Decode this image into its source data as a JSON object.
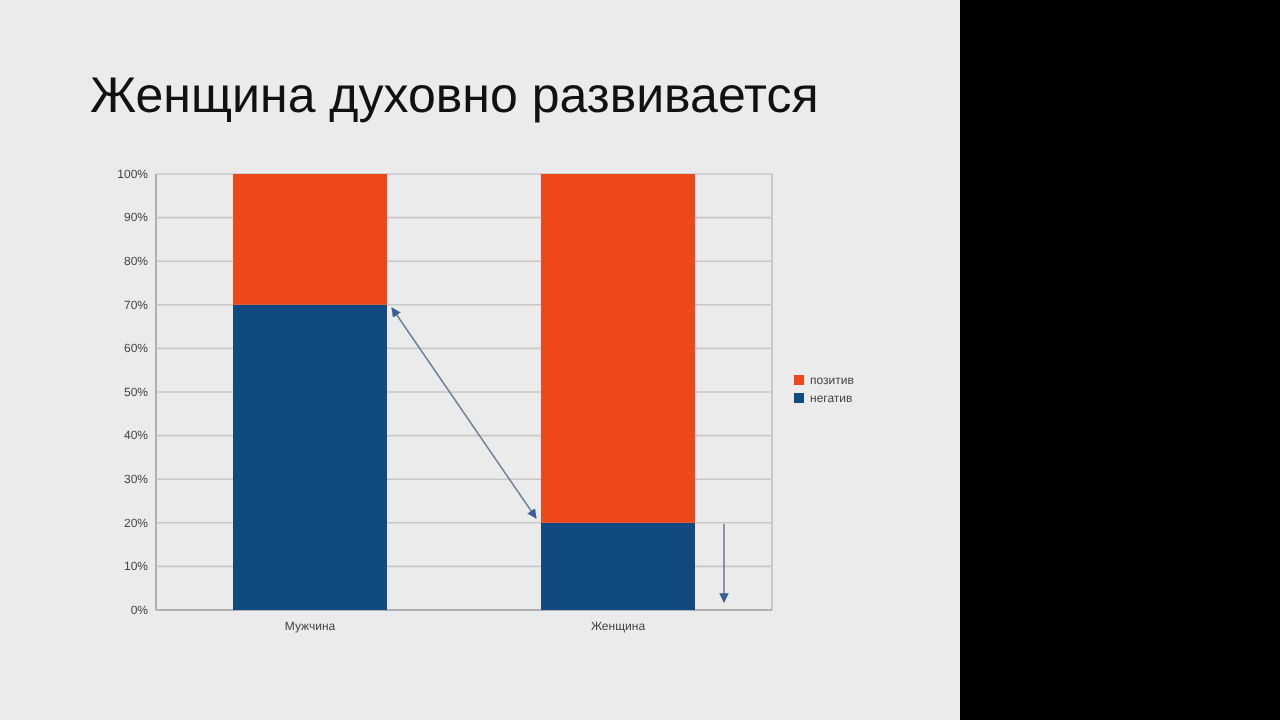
{
  "chart_data": {
    "type": "bar",
    "title": "Женщина духовно развивается",
    "categories": [
      "Мужчина",
      "Женщина"
    ],
    "stacked": true,
    "series": [
      {
        "name": "негатив",
        "color": "#114a81",
        "values": [
          70,
          20
        ]
      },
      {
        "name": "позитив",
        "color": "#ee4719",
        "values": [
          30,
          80
        ]
      }
    ],
    "ylim": [
      0,
      100
    ],
    "yticks": [
      {
        "value": 0,
        "label": "0%"
      },
      {
        "value": 10,
        "label": "10%"
      },
      {
        "value": 20,
        "label": "20%"
      },
      {
        "value": 30,
        "label": "30%"
      },
      {
        "value": 40,
        "label": "40%"
      },
      {
        "value": 50,
        "label": "50%"
      },
      {
        "value": 60,
        "label": "60%"
      },
      {
        "value": 70,
        "label": "70%"
      },
      {
        "value": 80,
        "label": "80%"
      },
      {
        "value": 90,
        "label": "90%"
      },
      {
        "value": 100,
        "label": "100%"
      }
    ],
    "grid": "y",
    "legend": "right"
  }
}
